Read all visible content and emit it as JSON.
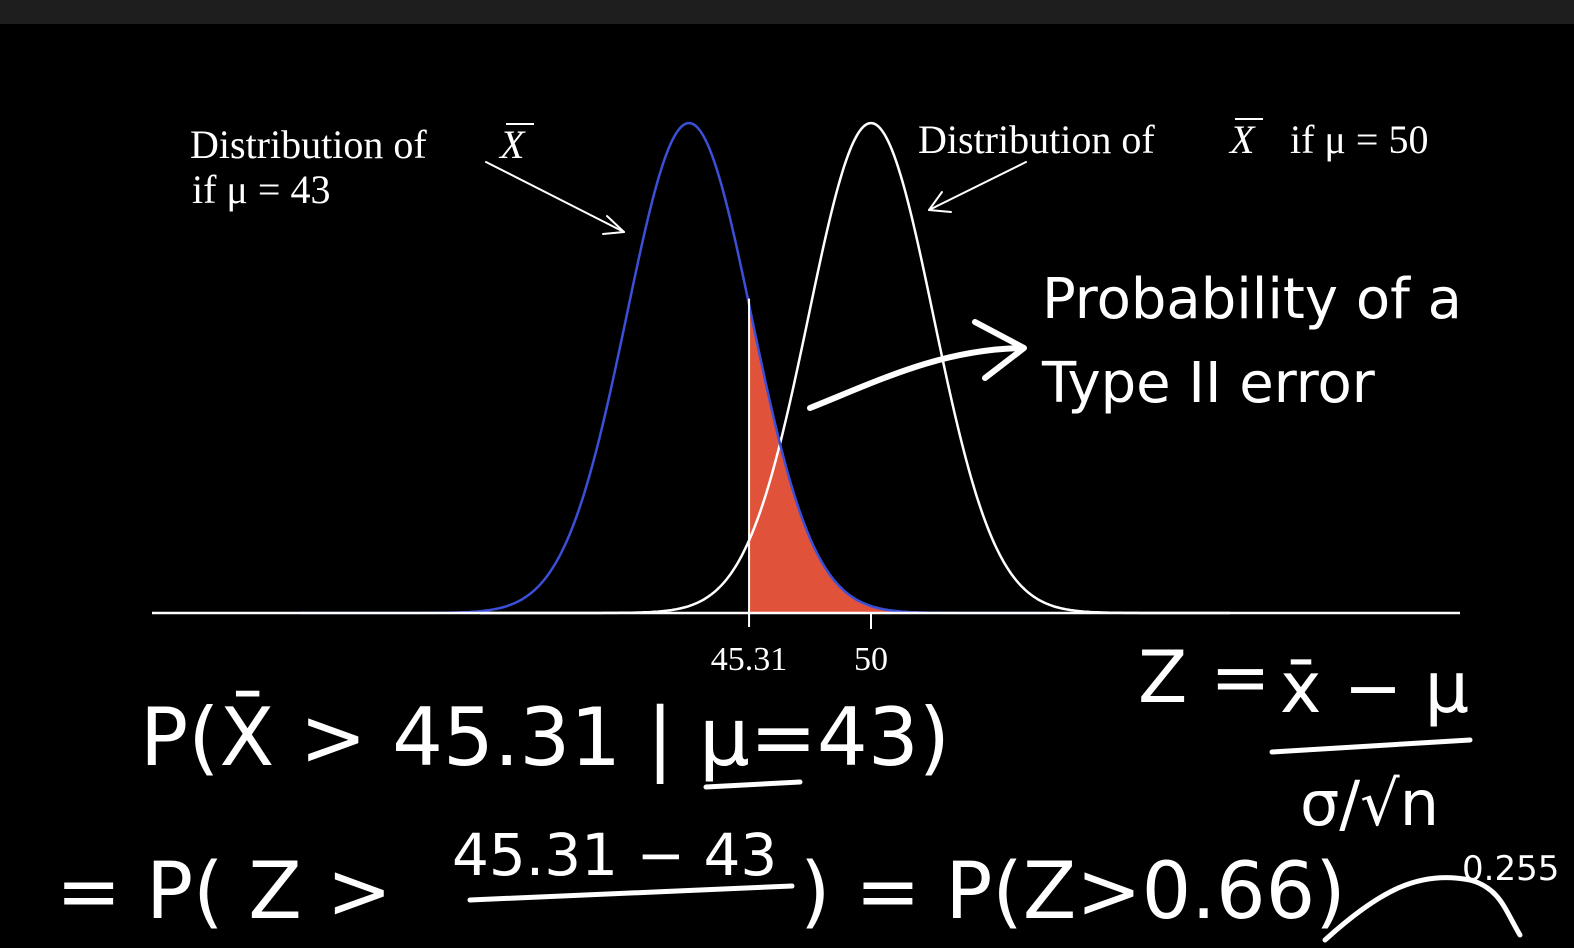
{
  "diagram": {
    "left_distribution": {
      "label_line1": "Distribution of",
      "label_symbol": "X",
      "label_line2": "if μ = 43",
      "mean": 43,
      "curve_color": "#3b4fd8"
    },
    "right_distribution": {
      "label_prefix": "Distribution of",
      "label_symbol": "X",
      "label_suffix": "if μ = 50",
      "mean": 50,
      "curve_color": "#ffffff"
    },
    "cutoff": 45.31,
    "shaded_region_color": "#e0533a",
    "tick_labels": [
      "45.31",
      "50"
    ],
    "callout_line1": "Probability of a",
    "callout_line2": "Type II error"
  },
  "handwriting": {
    "line1": "P(X̄ > 45.31 | μ=43)",
    "line2_start": "= P( Z >",
    "line2_fraction_numerator": "45.31 − 43",
    "line2_end": ") = P(Z>0.66)",
    "formula_left": "Z =",
    "formula_numerator": "x̄ − μ",
    "formula_denominator": "σ/√n",
    "corner_note": "0.255"
  }
}
